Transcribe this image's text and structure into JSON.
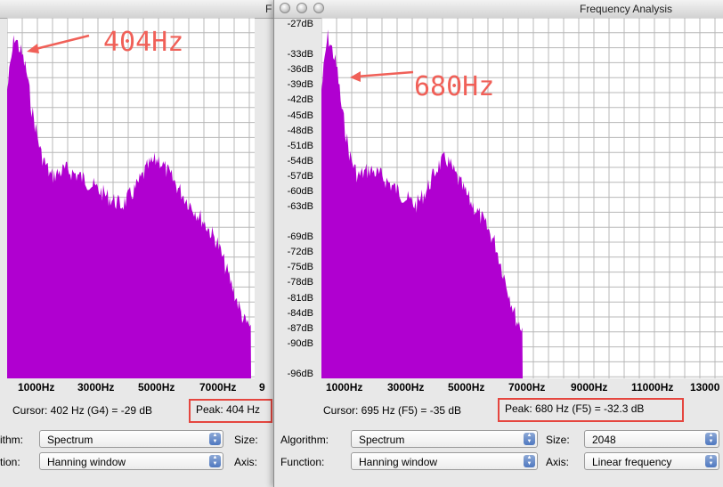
{
  "colors": {
    "spectrum": "#b000d0",
    "grid": "#b8b8b8",
    "annotation": "#f06058",
    "peak_box": "#e5463f"
  },
  "right_window": {
    "title": "Frequency Analysis",
    "y_labels": [
      "-27dB",
      "-33dB",
      "-36dB",
      "-39dB",
      "-42dB",
      "-45dB",
      "-48dB",
      "-51dB",
      "-54dB",
      "-57dB",
      "-60dB",
      "-63dB",
      "-69dB",
      "-72dB",
      "-75dB",
      "-78dB",
      "-81dB",
      "-84dB",
      "-87dB",
      "-90dB",
      "-96dB"
    ],
    "x_labels": [
      "1000Hz",
      "3000Hz",
      "5000Hz",
      "7000Hz",
      "9000Hz",
      "11000Hz",
      "13000"
    ],
    "cursor": "Cursor: 695 Hz (F5) = -35 dB",
    "peak": "Peak: 680 Hz (F5) = -32.3 dB",
    "algorithm_label": "Algorithm:",
    "algorithm_value": "Spectrum",
    "function_label": "Function:",
    "function_value": "Hanning window",
    "size_label": "Size:",
    "size_value": "2048",
    "axis_label": "Axis:",
    "axis_value": "Linear frequency",
    "annotation": "680Hz"
  },
  "left_window": {
    "title": "F",
    "x_labels": [
      "1000Hz",
      "3000Hz",
      "5000Hz",
      "7000Hz",
      "9"
    ],
    "cursor": "Cursor: 402 Hz (G4) = -29 dB",
    "peak": "Peak: 404 Hz",
    "algorithm_label": "ithm:",
    "algorithm_value": "Spectrum",
    "function_label": "tion:",
    "function_value": "Hanning window",
    "size_label": "Size:",
    "axis_label": "Axis:",
    "annotation": "404Hz"
  }
}
